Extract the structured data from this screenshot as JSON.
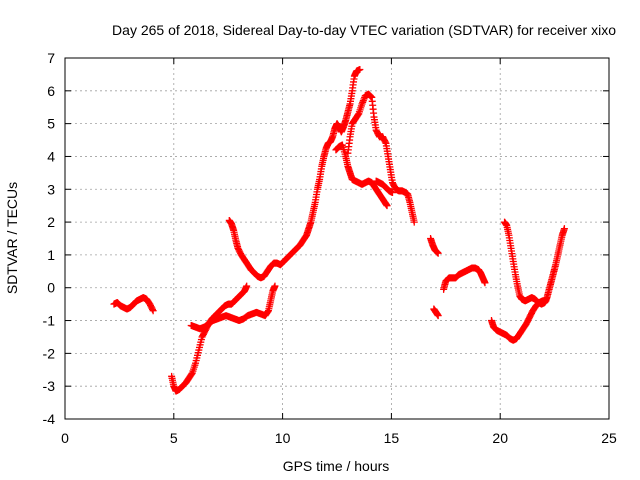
{
  "chart_data": {
    "type": "scatter",
    "title": "Day 265 of 2018, Sidereal Day-to-day VTEC variation (SDTVAR) for receiver xixo",
    "xlabel": "GPS time / hours",
    "ylabel": "SDTVAR / TECUs",
    "xlim": [
      0,
      25
    ],
    "ylim": [
      -4,
      7
    ],
    "xticks": [
      0,
      5,
      10,
      15,
      20,
      25
    ],
    "yticks": [
      -4,
      -3,
      -2,
      -1,
      0,
      1,
      2,
      3,
      4,
      5,
      6,
      7
    ],
    "xtick_labels": [
      "0",
      "5",
      "10",
      "15",
      "20",
      "25"
    ],
    "ytick_labels": [
      "-4",
      "-3",
      "-2",
      "-1",
      "0",
      "1",
      "2",
      "3",
      "4",
      "5",
      "6",
      "7"
    ],
    "grid": true,
    "marker": "+",
    "colors": {
      "series": "#ff0000",
      "grid": "#a0a0a0",
      "frame": "#000000",
      "background": "#ffffff"
    },
    "series": [
      {
        "name": "segment-1",
        "points": [
          [
            2.25,
            -0.5
          ],
          [
            2.4,
            -0.45
          ],
          [
            2.55,
            -0.55
          ],
          [
            2.7,
            -0.6
          ],
          [
            2.85,
            -0.65
          ],
          [
            3.0,
            -0.6
          ],
          [
            3.15,
            -0.5
          ],
          [
            3.3,
            -0.4
          ],
          [
            3.45,
            -0.35
          ],
          [
            3.6,
            -0.3
          ],
          [
            3.75,
            -0.35
          ],
          [
            3.9,
            -0.5
          ],
          [
            4.05,
            -0.7
          ]
        ]
      },
      {
        "name": "segment-2",
        "points": [
          [
            4.9,
            -2.7
          ],
          [
            5.0,
            -3.0
          ],
          [
            5.1,
            -3.15
          ],
          [
            5.25,
            -3.1
          ],
          [
            5.4,
            -3.0
          ],
          [
            5.55,
            -2.9
          ],
          [
            5.7,
            -2.75
          ],
          [
            5.85,
            -2.6
          ],
          [
            6.0,
            -2.3
          ],
          [
            6.15,
            -1.9
          ],
          [
            6.3,
            -1.5
          ],
          [
            6.45,
            -1.3
          ],
          [
            6.6,
            -1.1
          ],
          [
            6.75,
            -0.95
          ],
          [
            6.9,
            -0.85
          ],
          [
            7.05,
            -0.75
          ],
          [
            7.2,
            -0.65
          ],
          [
            7.35,
            -0.55
          ],
          [
            7.5,
            -0.5
          ],
          [
            7.65,
            -0.5
          ],
          [
            7.8,
            -0.4
          ],
          [
            7.95,
            -0.3
          ],
          [
            8.1,
            -0.2
          ],
          [
            8.25,
            -0.1
          ],
          [
            8.35,
            0.05
          ]
        ]
      },
      {
        "name": "segment-3",
        "points": [
          [
            5.8,
            -1.15
          ],
          [
            6.0,
            -1.2
          ],
          [
            6.2,
            -1.25
          ],
          [
            6.4,
            -1.2
          ],
          [
            6.6,
            -1.1
          ],
          [
            6.8,
            -1.0
          ],
          [
            7.0,
            -0.95
          ],
          [
            7.2,
            -0.9
          ],
          [
            7.4,
            -0.85
          ],
          [
            7.6,
            -0.9
          ],
          [
            7.8,
            -0.95
          ],
          [
            8.0,
            -1.0
          ],
          [
            8.2,
            -0.95
          ],
          [
            8.4,
            -0.85
          ],
          [
            8.6,
            -0.8
          ],
          [
            8.8,
            -0.75
          ],
          [
            9.0,
            -0.8
          ],
          [
            9.2,
            -0.85
          ],
          [
            9.35,
            -0.7
          ],
          [
            9.45,
            -0.4
          ],
          [
            9.55,
            -0.1
          ],
          [
            9.65,
            0.05
          ]
        ]
      },
      {
        "name": "segment-4",
        "points": [
          [
            7.55,
            2.05
          ],
          [
            7.65,
            1.95
          ],
          [
            7.75,
            1.75
          ],
          [
            7.85,
            1.45
          ],
          [
            7.95,
            1.2
          ],
          [
            8.1,
            1.0
          ],
          [
            8.25,
            0.85
          ],
          [
            8.4,
            0.7
          ],
          [
            8.55,
            0.55
          ],
          [
            8.7,
            0.45
          ],
          [
            8.85,
            0.35
          ],
          [
            9.0,
            0.3
          ],
          [
            9.15,
            0.35
          ],
          [
            9.3,
            0.5
          ],
          [
            9.45,
            0.65
          ],
          [
            9.6,
            0.75
          ],
          [
            9.75,
            0.75
          ],
          [
            9.9,
            0.7
          ],
          [
            10.05,
            0.8
          ],
          [
            10.2,
            0.9
          ],
          [
            10.35,
            1.0
          ],
          [
            10.5,
            1.1
          ],
          [
            10.65,
            1.2
          ],
          [
            10.8,
            1.3
          ],
          [
            10.95,
            1.45
          ],
          [
            11.1,
            1.6
          ],
          [
            11.2,
            1.8
          ],
          [
            11.3,
            2.0
          ],
          [
            11.4,
            2.3
          ],
          [
            11.5,
            2.6
          ],
          [
            11.6,
            3.0
          ],
          [
            11.7,
            3.3
          ],
          [
            11.8,
            3.7
          ],
          [
            11.9,
            4.0
          ],
          [
            12.0,
            4.25
          ],
          [
            12.1,
            4.4
          ],
          [
            12.2,
            4.45
          ],
          [
            12.3,
            4.6
          ],
          [
            12.4,
            4.85
          ],
          [
            12.5,
            5.0
          ],
          [
            12.6,
            4.9
          ],
          [
            12.7,
            4.75
          ],
          [
            12.8,
            4.9
          ],
          [
            12.9,
            5.1
          ],
          [
            13.0,
            5.35
          ],
          [
            13.1,
            5.6
          ],
          [
            13.2,
            6.0
          ],
          [
            13.3,
            6.45
          ],
          [
            13.4,
            6.6
          ],
          [
            13.55,
            6.65
          ]
        ]
      },
      {
        "name": "segment-5",
        "points": [
          [
            12.45,
            4.2
          ],
          [
            12.6,
            4.3
          ],
          [
            12.75,
            4.35
          ],
          [
            12.9,
            4.0
          ],
          [
            13.0,
            3.7
          ],
          [
            13.1,
            3.5
          ],
          [
            13.2,
            3.3
          ],
          [
            13.35,
            3.25
          ],
          [
            13.5,
            3.2
          ],
          [
            13.65,
            3.15
          ],
          [
            13.8,
            3.2
          ],
          [
            13.95,
            3.25
          ],
          [
            14.1,
            3.2
          ],
          [
            14.25,
            3.05
          ],
          [
            14.4,
            2.9
          ],
          [
            14.55,
            2.75
          ],
          [
            14.7,
            2.6
          ],
          [
            14.8,
            2.5
          ]
        ]
      },
      {
        "name": "segment-6",
        "points": [
          [
            13.0,
            4.1
          ],
          [
            13.1,
            4.6
          ],
          [
            13.2,
            5.0
          ],
          [
            13.35,
            5.15
          ],
          [
            13.5,
            5.3
          ],
          [
            13.65,
            5.6
          ],
          [
            13.8,
            5.85
          ],
          [
            13.95,
            5.9
          ],
          [
            14.1,
            5.8
          ],
          [
            14.2,
            5.2
          ],
          [
            14.3,
            4.8
          ],
          [
            14.45,
            4.6
          ],
          [
            14.6,
            4.6
          ],
          [
            14.75,
            4.4
          ],
          [
            14.85,
            4.0
          ],
          [
            14.95,
            3.6
          ],
          [
            15.05,
            3.2
          ],
          [
            15.2,
            3.0
          ],
          [
            15.35,
            2.95
          ],
          [
            15.5,
            2.95
          ],
          [
            15.65,
            2.9
          ],
          [
            15.75,
            2.85
          ],
          [
            15.85,
            2.6
          ],
          [
            15.95,
            2.3
          ],
          [
            16.05,
            2.0
          ]
        ]
      },
      {
        "name": "segment-7",
        "points": [
          [
            14.3,
            3.25
          ],
          [
            14.45,
            3.2
          ],
          [
            14.6,
            3.15
          ],
          [
            14.75,
            3.05
          ],
          [
            14.9,
            2.95
          ],
          [
            15.05,
            2.9
          ]
        ]
      },
      {
        "name": "segment-8",
        "points": [
          [
            16.8,
            1.5
          ],
          [
            16.9,
            1.3
          ],
          [
            17.0,
            1.15
          ],
          [
            17.15,
            1.05
          ]
        ]
      },
      {
        "name": "segment-9",
        "points": [
          [
            16.95,
            -0.65
          ],
          [
            17.05,
            -0.75
          ],
          [
            17.15,
            -0.85
          ]
        ]
      },
      {
        "name": "segment-10",
        "points": [
          [
            17.4,
            -0.05
          ],
          [
            17.5,
            0.2
          ],
          [
            17.65,
            0.3
          ],
          [
            17.8,
            0.3
          ],
          [
            17.95,
            0.3
          ],
          [
            18.1,
            0.4
          ],
          [
            18.25,
            0.45
          ],
          [
            18.4,
            0.5
          ],
          [
            18.55,
            0.55
          ],
          [
            18.7,
            0.6
          ],
          [
            18.85,
            0.6
          ],
          [
            19.0,
            0.55
          ],
          [
            19.1,
            0.45
          ],
          [
            19.2,
            0.3
          ],
          [
            19.3,
            0.15
          ]
        ]
      },
      {
        "name": "segment-11",
        "points": [
          [
            19.6,
            -1.0
          ],
          [
            19.7,
            -1.2
          ],
          [
            19.85,
            -1.3
          ],
          [
            20.0,
            -1.35
          ],
          [
            20.15,
            -1.4
          ],
          [
            20.3,
            -1.45
          ],
          [
            20.45,
            -1.55
          ],
          [
            20.6,
            -1.6
          ],
          [
            20.75,
            -1.55
          ],
          [
            20.9,
            -1.4
          ],
          [
            21.05,
            -1.25
          ],
          [
            21.2,
            -1.1
          ],
          [
            21.35,
            -0.9
          ],
          [
            21.5,
            -0.7
          ],
          [
            21.65,
            -0.55
          ],
          [
            21.8,
            -0.45
          ],
          [
            21.95,
            -0.4
          ],
          [
            22.1,
            -0.4
          ]
        ]
      },
      {
        "name": "segment-12",
        "points": [
          [
            20.2,
            2.0
          ],
          [
            20.3,
            1.9
          ],
          [
            20.4,
            1.6
          ],
          [
            20.5,
            1.2
          ],
          [
            20.6,
            0.8
          ],
          [
            20.7,
            0.4
          ],
          [
            20.8,
            0.05
          ],
          [
            20.9,
            -0.25
          ],
          [
            21.0,
            -0.35
          ],
          [
            21.15,
            -0.4
          ],
          [
            21.3,
            -0.35
          ],
          [
            21.45,
            -0.3
          ],
          [
            21.6,
            -0.35
          ],
          [
            21.75,
            -0.45
          ],
          [
            21.9,
            -0.5
          ],
          [
            22.05,
            -0.45
          ],
          [
            22.15,
            -0.3
          ],
          [
            22.25,
            -0.05
          ],
          [
            22.35,
            0.2
          ],
          [
            22.45,
            0.45
          ],
          [
            22.55,
            0.7
          ],
          [
            22.65,
            1.0
          ],
          [
            22.75,
            1.3
          ],
          [
            22.85,
            1.6
          ],
          [
            22.95,
            1.8
          ]
        ]
      }
    ]
  }
}
